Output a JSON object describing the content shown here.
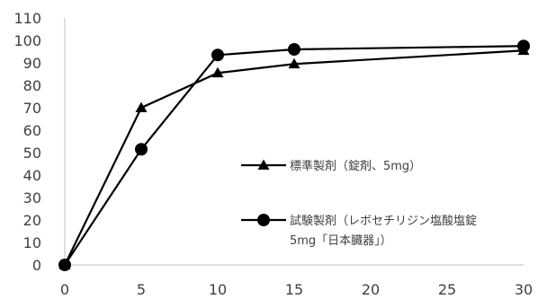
{
  "chart_data": {
    "type": "line",
    "title": "",
    "xlabel": "",
    "ylabel": "",
    "xlim": [
      0,
      30
    ],
    "ylim": [
      0,
      110
    ],
    "x_ticks": [
      0,
      5,
      10,
      15,
      20,
      25,
      30
    ],
    "y_ticks": [
      0,
      10,
      20,
      30,
      40,
      50,
      60,
      70,
      80,
      90,
      100,
      110
    ],
    "grid": false,
    "legend_position": "right",
    "series": [
      {
        "name": "標準製剤（錠剤、5mg）",
        "marker": "triangle",
        "color": "#000000",
        "x": [
          0,
          5,
          10,
          15,
          30
        ],
        "y": [
          0,
          70,
          85.5,
          89.5,
          95.5
        ]
      },
      {
        "name": "試験製剤（レボセチリジン塩酸塩錠5mg「日本臓器」）",
        "name_lines": [
          "試験製剤（レボセチリジン塩酸塩錠",
          "5mg「日本臓器」）"
        ],
        "marker": "circle",
        "color": "#000000",
        "x": [
          0,
          5,
          10,
          15,
          30
        ],
        "y": [
          0,
          51.5,
          93.5,
          96,
          97.5
        ]
      }
    ]
  }
}
